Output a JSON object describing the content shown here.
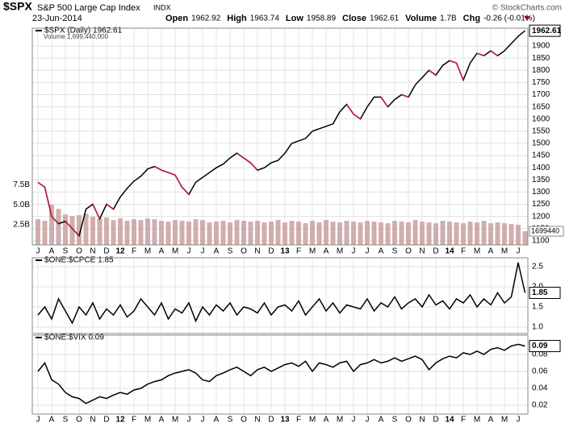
{
  "header": {
    "symbol": "$SPX",
    "name": "S&P 500 Large Cap Index",
    "exchange": "INDX",
    "copyright": "© StockCharts.com",
    "date": "23-Jun-2014",
    "quote": [
      {
        "label": "Open",
        "value": "1962.92"
      },
      {
        "label": "High",
        "value": "1963.74"
      },
      {
        "label": "Low",
        "value": "1958.89"
      },
      {
        "label": "Close",
        "value": "1962.61"
      },
      {
        "label": "Volume",
        "value": "1.7B"
      },
      {
        "label": "Chg",
        "value": "-0.26 (-0.01%)"
      }
    ]
  },
  "months": [
    "J",
    "A",
    "S",
    "O",
    "N",
    "D",
    "12",
    "F",
    "M",
    "A",
    "M",
    "J",
    "J",
    "A",
    "S",
    "O",
    "N",
    "D",
    "13",
    "F",
    "M",
    "A",
    "M",
    "J",
    "J",
    "A",
    "S",
    "O",
    "N",
    "D",
    "14",
    "F",
    "M",
    "A",
    "M",
    "J"
  ],
  "chart_data": [
    {
      "type": "line",
      "series": [
        {
          "name": "$SPX (Daily) 1962.61",
          "color": "#000000",
          "down_color": "#c0203c",
          "values": [
            1340,
            1320,
            1200,
            1170,
            1180,
            1150,
            1120,
            1230,
            1250,
            1190,
            1250,
            1230,
            1280,
            1315,
            1345,
            1365,
            1395,
            1405,
            1390,
            1380,
            1370,
            1320,
            1290,
            1340,
            1360,
            1380,
            1400,
            1415,
            1440,
            1460,
            1440,
            1420,
            1390,
            1400,
            1420,
            1430,
            1460,
            1500,
            1510,
            1520,
            1550,
            1560,
            1570,
            1580,
            1630,
            1660,
            1620,
            1600,
            1650,
            1690,
            1690,
            1650,
            1680,
            1700,
            1690,
            1740,
            1770,
            1800,
            1780,
            1820,
            1840,
            1830,
            1760,
            1830,
            1870,
            1860,
            1880,
            1860,
            1880,
            1910,
            1940,
            1962.61
          ]
        }
      ],
      "last_tag": "1962.61",
      "ylim": [
        1083,
        1973
      ],
      "yticks": [
        1100,
        1150,
        1200,
        1250,
        1300,
        1350,
        1400,
        1450,
        1500,
        1550,
        1600,
        1650,
        1700,
        1750,
        1800,
        1850,
        1900
      ],
      "grid": true,
      "volume": {
        "type": "bar",
        "name": "Volume 1,699,440,000",
        "color": "#c9a0a0",
        "values": [
          3.2,
          3.0,
          5.0,
          4.5,
          3.8,
          3.6,
          3.7,
          3.9,
          3.5,
          3.3,
          3.4,
          3.1,
          3.3,
          3.0,
          3.2,
          3.1,
          3.3,
          3.2,
          3.0,
          2.9,
          3.1,
          3.0,
          2.9,
          3.2,
          3.1,
          2.8,
          2.9,
          3.0,
          2.8,
          3.1,
          3.0,
          2.9,
          3.0,
          2.8,
          2.9,
          3.1,
          2.8,
          3.0,
          2.9,
          2.7,
          3.0,
          2.8,
          3.1,
          2.9,
          2.8,
          3.0,
          2.9,
          2.8,
          3.0,
          2.9,
          2.8,
          2.7,
          3.0,
          2.9,
          2.8,
          3.1,
          2.9,
          2.8,
          2.7,
          3.0,
          2.9,
          2.8,
          2.7,
          2.9,
          2.8,
          3.0,
          2.7,
          2.8,
          2.7,
          2.6,
          2.5,
          1.69944
        ],
        "last_tag": "1699440",
        "y2lim": [
          0,
          27
        ],
        "y2ticks": [
          {
            "value": 2.5,
            "label": "2.5B"
          },
          {
            "value": 5,
            "label": "5.0B"
          },
          {
            "value": 7.5,
            "label": "7.5B"
          }
        ]
      }
    },
    {
      "type": "line",
      "series": [
        {
          "name": "$ONE:$CPCE 1.85",
          "color": "#000000",
          "values": [
            1.3,
            1.5,
            1.2,
            1.7,
            1.4,
            1.1,
            1.5,
            1.3,
            1.6,
            1.2,
            1.45,
            1.3,
            1.55,
            1.25,
            1.4,
            1.7,
            1.5,
            1.3,
            1.6,
            1.2,
            1.45,
            1.35,
            1.6,
            1.15,
            1.5,
            1.3,
            1.55,
            1.4,
            1.6,
            1.3,
            1.5,
            1.45,
            1.35,
            1.6,
            1.3,
            1.5,
            1.55,
            1.4,
            1.65,
            1.3,
            1.5,
            1.7,
            1.4,
            1.6,
            1.35,
            1.55,
            1.5,
            1.45,
            1.7,
            1.4,
            1.6,
            1.5,
            1.75,
            1.45,
            1.6,
            1.7,
            1.5,
            1.8,
            1.55,
            1.65,
            1.45,
            1.7,
            1.6,
            1.8,
            1.5,
            1.7,
            1.55,
            1.85,
            1.6,
            1.75,
            2.6,
            1.85
          ]
        }
      ],
      "last_tag": "1.85",
      "ylim": [
        0.84,
        2.72
      ],
      "yticks": [
        {
          "value": 1,
          "label": "1.0"
        },
        1.5,
        {
          "value": 2,
          "label": "2.0"
        },
        2.5
      ],
      "grid": true
    },
    {
      "type": "line",
      "series": [
        {
          "name": "$ONE:$VIX 0.09",
          "color": "#000000",
          "values": [
            0.06,
            0.07,
            0.05,
            0.045,
            0.035,
            0.03,
            0.028,
            0.022,
            0.026,
            0.03,
            0.028,
            0.032,
            0.035,
            0.033,
            0.038,
            0.04,
            0.045,
            0.048,
            0.05,
            0.055,
            0.058,
            0.06,
            0.062,
            0.058,
            0.05,
            0.048,
            0.055,
            0.058,
            0.062,
            0.065,
            0.06,
            0.055,
            0.062,
            0.065,
            0.06,
            0.064,
            0.068,
            0.07,
            0.066,
            0.072,
            0.06,
            0.07,
            0.068,
            0.065,
            0.07,
            0.072,
            0.06,
            0.068,
            0.07,
            0.074,
            0.07,
            0.072,
            0.076,
            0.072,
            0.075,
            0.078,
            0.074,
            0.062,
            0.07,
            0.075,
            0.078,
            0.076,
            0.082,
            0.08,
            0.084,
            0.08,
            0.086,
            0.088,
            0.085,
            0.09,
            0.092,
            0.09
          ]
        }
      ],
      "last_tag": "0.09",
      "ylim": [
        0.0095,
        0.1029
      ],
      "yticks": [
        0.02,
        0.04,
        0.06,
        0.08
      ],
      "grid": true
    }
  ]
}
